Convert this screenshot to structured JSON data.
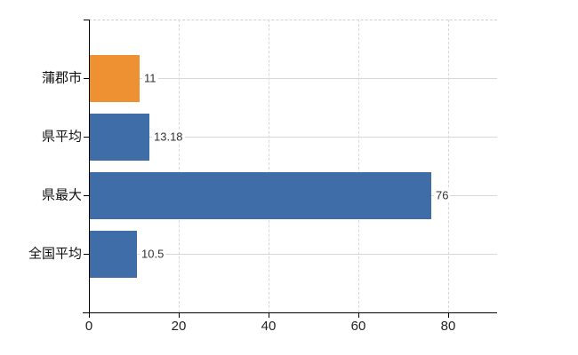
{
  "chart_data": {
    "type": "bar",
    "orientation": "horizontal",
    "title": "",
    "categories": [
      "蒲郡市",
      "県平均",
      "県最大",
      "全国平均"
    ],
    "values": [
      11,
      13.18,
      76,
      10.5
    ],
    "value_labels": [
      "11",
      "13.18",
      "76",
      "10.5"
    ],
    "x_ticks": [
      "0",
      "20",
      "40",
      "60",
      "80"
    ],
    "x_tick_values": [
      0,
      20,
      40,
      60,
      80
    ],
    "xlim": [
      0,
      91
    ],
    "grid": true,
    "legend_position": "none",
    "colors": {
      "highlight_bar": "#ee9133",
      "default_bar": "#3e6da8",
      "grid_line": "#d6dbd6",
      "axis_line": "#000000",
      "text": "#333333"
    },
    "bar_color_keys": [
      "highlight_bar",
      "default_bar",
      "default_bar",
      "default_bar"
    ]
  }
}
